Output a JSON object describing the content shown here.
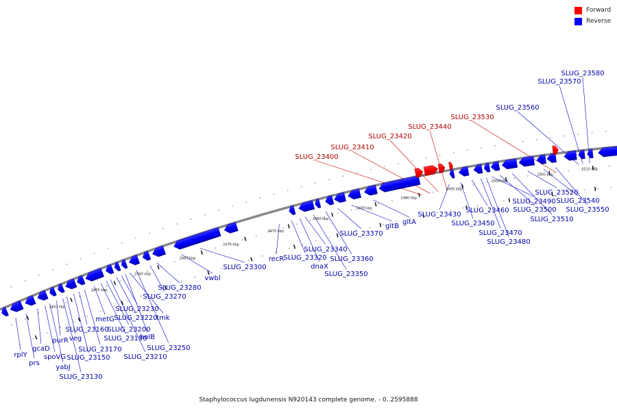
{
  "legend": {
    "forward": {
      "label": "Forward",
      "color": "#ff0000"
    },
    "reverse": {
      "label": "Reverse",
      "color": "#0000ff"
    }
  },
  "caption": "Staphylococcus lugdunensis N920143 complete genome. - 0..2595888",
  "colors": {
    "backbone": "#888888",
    "label_line": "#0000cc",
    "forward_line": "#cc0000"
  },
  "scale_labels": [
    "2450 kbp",
    "2455 kbp",
    "2460 kbp",
    "2465 kbp",
    "2470 kbp",
    "2475 kbp",
    "2480 kbp",
    "2485 kbp",
    "2490 kbp",
    "2495 kbp",
    "2500 kbp",
    "2505 kbp",
    "2510 kbp"
  ],
  "gene_labels": [
    {
      "text": "rplY",
      "strand": "reverse"
    },
    {
      "text": "prs",
      "strand": "reverse"
    },
    {
      "text": "gcaD",
      "strand": "reverse"
    },
    {
      "text": "spoVG",
      "strand": "reverse"
    },
    {
      "text": "yabJ",
      "strand": "reverse"
    },
    {
      "text": "purR",
      "strand": "reverse"
    },
    {
      "text": "SLUG_23130",
      "strand": "reverse"
    },
    {
      "text": "veg",
      "strand": "reverse"
    },
    {
      "text": "SLUG_23150",
      "strand": "reverse"
    },
    {
      "text": "SLUG_23160",
      "strand": "reverse"
    },
    {
      "text": "SLUG_23170",
      "strand": "reverse"
    },
    {
      "text": "metG",
      "strand": "reverse"
    },
    {
      "text": "SLUG_23190",
      "strand": "reverse"
    },
    {
      "text": "SLUG_23200",
      "strand": "reverse"
    },
    {
      "text": "SLUG_23210",
      "strand": "reverse"
    },
    {
      "text": "SLUG_23220",
      "strand": "reverse"
    },
    {
      "text": "SLUG_23230",
      "strand": "reverse"
    },
    {
      "text": "holB",
      "strand": "reverse"
    },
    {
      "text": "tmk",
      "strand": "reverse"
    },
    {
      "text": "SLUG_23250",
      "strand": "reverse"
    },
    {
      "text": "SLUG_23270",
      "strand": "reverse"
    },
    {
      "text": "SLUG_23280",
      "strand": "reverse"
    },
    {
      "text": "vwbl",
      "strand": "reverse"
    },
    {
      "text": "SLUG_23300",
      "strand": "reverse"
    },
    {
      "text": "recR",
      "strand": "reverse"
    },
    {
      "text": "SLUG_23320",
      "strand": "reverse"
    },
    {
      "text": "dnaX",
      "strand": "reverse"
    },
    {
      "text": "SLUG_23340",
      "strand": "reverse"
    },
    {
      "text": "SLUG_23350",
      "strand": "reverse"
    },
    {
      "text": "SLUG_23360",
      "strand": "reverse"
    },
    {
      "text": "SLUG_23370",
      "strand": "reverse"
    },
    {
      "text": "gltB",
      "strand": "reverse"
    },
    {
      "text": "gltA",
      "strand": "reverse"
    },
    {
      "text": "SLUG_23400",
      "strand": "forward"
    },
    {
      "text": "SLUG_23410",
      "strand": "forward"
    },
    {
      "text": "SLUG_23420",
      "strand": "forward"
    },
    {
      "text": "SLUG_23430",
      "strand": "reverse"
    },
    {
      "text": "SLUG_23440",
      "strand": "forward"
    },
    {
      "text": "SLUG_23450",
      "strand": "reverse"
    },
    {
      "text": "SLUG_23460",
      "strand": "reverse"
    },
    {
      "text": "SLUG_23470",
      "strand": "reverse"
    },
    {
      "text": "SLUG_23480",
      "strand": "reverse"
    },
    {
      "text": "SLUG_23490",
      "strand": "reverse"
    },
    {
      "text": "SLUG_23500",
      "strand": "reverse"
    },
    {
      "text": "SLUG_23510",
      "strand": "reverse"
    },
    {
      "text": "SLUG_23520",
      "strand": "reverse"
    },
    {
      "text": "SLUG_23530",
      "strand": "forward"
    },
    {
      "text": "SLUG_23540",
      "strand": "reverse"
    },
    {
      "text": "SLUG_23550",
      "strand": "reverse"
    },
    {
      "text": "SLUG_23560",
      "strand": "reverse"
    },
    {
      "text": "SLUG_23570",
      "strand": "reverse"
    },
    {
      "text": "SLUG_23580",
      "strand": "reverse"
    }
  ]
}
